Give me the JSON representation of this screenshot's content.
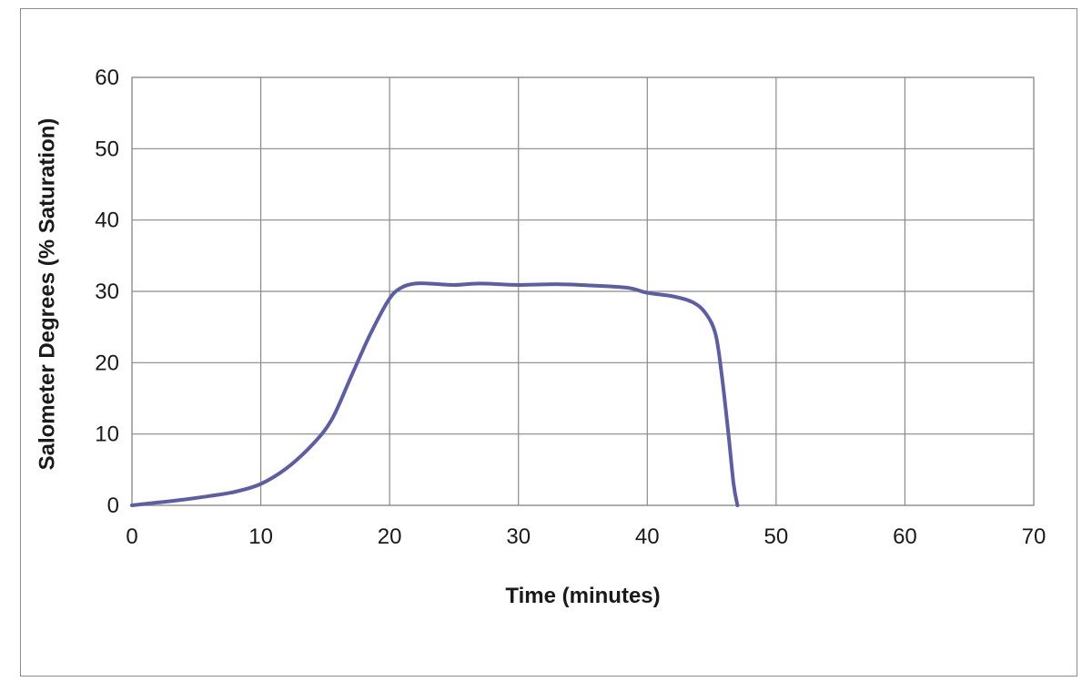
{
  "chart_data": {
    "type": "line",
    "title": "",
    "xlabel": "Time (minutes)",
    "ylabel": "Salometer Degrees (% Saturation)",
    "xlim": [
      0,
      70
    ],
    "ylim": [
      0,
      60
    ],
    "xticks": [
      "0",
      "10",
      "20",
      "30",
      "40",
      "50",
      "60",
      "70"
    ],
    "yticks": [
      "0",
      "10",
      "20",
      "30",
      "40",
      "50",
      "60"
    ],
    "grid": true,
    "legend": "none",
    "series": [
      {
        "color": "#5b5ea6",
        "points": [
          [
            0,
            0
          ],
          [
            2,
            0.4
          ],
          [
            4,
            0.8
          ],
          [
            6,
            1.3
          ],
          [
            8,
            1.9
          ],
          [
            10,
            3.0
          ],
          [
            12,
            5.2
          ],
          [
            14,
            8.5
          ],
          [
            15.5,
            12.0
          ],
          [
            17,
            18.0
          ],
          [
            18.5,
            24.0
          ],
          [
            20,
            29.0
          ],
          [
            21,
            30.6
          ],
          [
            22,
            31.1
          ],
          [
            23,
            31.1
          ],
          [
            25,
            30.9
          ],
          [
            27,
            31.1
          ],
          [
            30,
            30.9
          ],
          [
            33,
            31.0
          ],
          [
            36,
            30.8
          ],
          [
            38.5,
            30.5
          ],
          [
            40,
            29.8
          ],
          [
            42,
            29.3
          ],
          [
            43.5,
            28.5
          ],
          [
            44.5,
            27.0
          ],
          [
            45.3,
            24.0
          ],
          [
            45.8,
            18.0
          ],
          [
            46.3,
            10.0
          ],
          [
            46.7,
            3.0
          ],
          [
            47,
            0
          ]
        ]
      }
    ]
  }
}
